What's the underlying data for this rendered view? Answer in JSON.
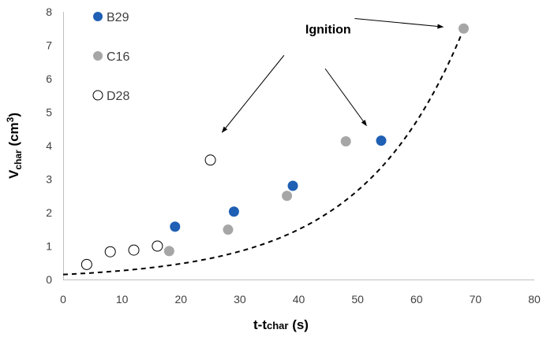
{
  "chart_data": {
    "type": "scatter",
    "title": "",
    "xlabel": {
      "main": "t-t",
      "sub": "char",
      "unit": " (s)"
    },
    "ylabel": {
      "main": "V",
      "sub": "char",
      "unit": " (cm",
      "sup": "3",
      "close": ")"
    },
    "xlim": [
      0,
      80
    ],
    "ylim": [
      0,
      8
    ],
    "xticks": [
      0,
      10,
      20,
      30,
      40,
      50,
      60,
      70,
      80
    ],
    "yticks": [
      0,
      1,
      2,
      3,
      4,
      5,
      6,
      7,
      8
    ],
    "grid": false,
    "legend_position": "top-left",
    "series": [
      {
        "name": "B29",
        "color": "#1f5fb4",
        "style": "filled",
        "x": [
          19,
          29,
          39,
          54
        ],
        "y": [
          1.58,
          2.03,
          2.8,
          4.15
        ]
      },
      {
        "name": "C16",
        "color": "#a6a6a6",
        "style": "filled",
        "x": [
          18,
          28,
          38,
          48,
          68
        ],
        "y": [
          0.85,
          1.49,
          2.5,
          4.13,
          7.5
        ]
      },
      {
        "name": "D28",
        "color": "#000000",
        "style": "open",
        "x": [
          4,
          8,
          12,
          16,
          25
        ],
        "y": [
          0.45,
          0.83,
          0.88,
          1.0,
          3.57
        ]
      }
    ],
    "trendline": {
      "style": "dashed",
      "type": "exponential",
      "a": 0.15,
      "b": 0.0575,
      "x_from": 0,
      "x_to": 68
    },
    "annotations": [
      {
        "text": "Ignition",
        "x": 45,
        "y": 7.5,
        "arrows": [
          {
            "from": [
              37.5,
              6.7
            ],
            "to": [
              27,
              4.4
            ]
          },
          {
            "from": [
              44.5,
              6.3
            ],
            "to": [
              51.5,
              4.6
            ]
          },
          {
            "from": [
              49.5,
              7.8
            ],
            "to": [
              64.5,
              7.55
            ]
          }
        ]
      }
    ]
  }
}
